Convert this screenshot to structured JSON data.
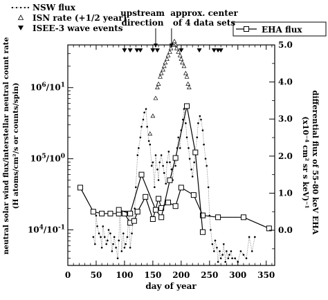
{
  "chart_data": {
    "type": "scatter",
    "xlabel": "day of year",
    "ylabel_left": "neutral solar wind flux/interstellar neutral count rate",
    "ylabel_left_units": "(H atoms/cm²/s or counts/spin)",
    "ylabel_right": "differential flux of 55-80 keV EHA",
    "ylabel_right_units": "(x10⁻⁴ cm² sr s keV)⁻¹",
    "xlim": [
      0,
      365
    ],
    "ylim_left_log_decades": [
      3.5,
      6.6
    ],
    "ylim_right": [
      -0.95,
      5.0
    ],
    "x_ticks": [
      "0",
      "50",
      "100",
      "150",
      "200",
      "250",
      "300",
      "350"
    ],
    "x_tick_values": [
      0,
      50,
      100,
      150,
      200,
      250,
      300,
      350
    ],
    "left_ticks": [
      {
        "label": "10^6/10^1",
        "base": "10",
        "exp": "6",
        "sep": "/",
        "base2": "10",
        "exp2": "1",
        "value": 6
      },
      {
        "label": "10^5/10^0",
        "base": "10",
        "exp": "5",
        "sep": "/",
        "base2": "10",
        "exp2": "0",
        "value": 5
      },
      {
        "label": "10^4/10^-1",
        "base": "10",
        "exp": "4",
        "sep": "/",
        "base2": "10",
        "exp2": "-1",
        "value": 4
      }
    ],
    "right_ticks": [
      "0.0",
      "1.0",
      "2.0",
      "3.0",
      "4.0",
      "5.0"
    ],
    "right_tick_values": [
      0,
      1,
      2,
      3,
      4,
      5
    ],
    "legend_left": [
      {
        "symbol": "dotted-dots",
        "label": "NSW flux"
      },
      {
        "symbol": "open-triangle",
        "label": "ISN rate (+1/2 year)"
      },
      {
        "symbol": "filled-triangle",
        "label": "ISEE-3 wave events"
      }
    ],
    "legend_right": {
      "symbol": "open-square-line",
      "label": "EHA flux"
    },
    "annotations": [
      {
        "line1": "upstream",
        "line2": "direction",
        "day": 155
      },
      {
        "line1": "approx. center",
        "line2": "of 4 data sets",
        "day": 183
      }
    ],
    "series": [
      {
        "name": "EHA flux",
        "axis": "right",
        "x": [
          22,
          45,
          60,
          75,
          90,
          100,
          110,
          117,
          123,
          137,
          150,
          160,
          165,
          177,
          190,
          200,
          222,
          238,
          265,
          310,
          355
        ],
        "y": [
          1.15,
          0.5,
          0.45,
          0.45,
          0.45,
          0.45,
          0.2,
          0.25,
          0.5,
          0.9,
          0.3,
          0.85,
          0.6,
          0.75,
          0.65,
          1.15,
          0.95,
          0.4,
          0.35,
          0.35,
          0.05
        ]
      },
      {
        "name": "EHA flux (second trace)",
        "axis": "right",
        "x": [
          90,
          110,
          130,
          155,
          165,
          180,
          190,
          210,
          225,
          238
        ],
        "y": [
          0.55,
          0.45,
          1.5,
          0.55,
          0.35,
          1.35,
          1.95,
          3.35,
          2.1,
          -0.05
        ]
      }
    ],
    "nsw_flux_points": {
      "axis": "left_log10",
      "x": [
        45,
        48,
        50,
        52,
        55,
        58,
        60,
        62,
        65,
        68,
        70,
        72,
        75,
        78,
        80,
        82,
        85,
        88,
        90,
        92,
        95,
        98,
        100,
        102,
        105,
        108,
        110,
        113,
        115,
        118,
        120,
        123,
        125,
        128,
        130,
        133,
        135,
        138,
        140,
        143,
        145,
        148,
        150,
        153,
        155,
        158,
        160,
        162,
        165,
        168,
        170,
        173,
        175,
        178,
        180,
        183,
        185,
        188,
        190,
        193,
        195,
        198,
        200,
        203,
        205,
        208,
        210,
        213,
        215,
        218,
        220,
        223,
        225,
        228,
        230,
        233,
        235,
        238,
        240,
        243,
        245,
        248,
        250,
        252,
        255,
        258,
        260,
        263,
        265,
        268,
        270,
        273,
        275,
        278,
        280,
        283,
        285,
        288,
        290,
        295,
        300,
        305,
        310,
        315,
        320,
        325,
        330
      ],
      "y": [
        3.9,
        3.8,
        4.2,
        4.05,
        3.95,
        3.9,
        3.75,
        4.05,
        3.9,
        3.8,
        3.85,
        4.0,
        3.95,
        3.7,
        3.8,
        3.9,
        3.75,
        3.6,
        3.85,
        4.3,
        3.7,
        3.95,
        3.75,
        3.8,
        3.9,
        4.25,
        3.75,
        3.95,
        4.1,
        4.3,
        4.6,
        5.05,
        5.15,
        5.3,
        5.45,
        5.55,
        5.65,
        5.7,
        5.45,
        5.25,
        5.2,
        4.9,
        4.95,
        4.6,
        5.05,
        4.85,
        4.7,
        4.95,
        5.05,
        4.9,
        4.8,
        4.65,
        4.95,
        5.1,
        4.95,
        4.85,
        4.7,
        5.0,
        4.9,
        5.15,
        5.3,
        5.15,
        5.4,
        5.55,
        5.7,
        5.5,
        5.3,
        5.15,
        5.0,
        4.85,
        4.75,
        4.95,
        5.1,
        5.3,
        5.5,
        5.6,
        5.55,
        5.4,
        5.2,
        5.0,
        4.9,
        4.6,
        4.2,
        4.0,
        3.8,
        3.7,
        3.85,
        3.75,
        3.55,
        3.7,
        3.6,
        3.65,
        3.8,
        3.55,
        3.7,
        3.6,
        3.65,
        3.7,
        3.6,
        3.6,
        3.55,
        3.7,
        3.65,
        3.6,
        3.9,
        3.7,
        3.9
      ]
    },
    "isn_rate_points": {
      "axis": "left_log10",
      "x": [
        145,
        150,
        155,
        158,
        160,
        163,
        165,
        168,
        170,
        172,
        175,
        177,
        180,
        182,
        185,
        188,
        190,
        192,
        195,
        198,
        200,
        202,
        205,
        208,
        210,
        212,
        214
      ],
      "y": [
        5.35,
        5.6,
        5.85,
        6.0,
        6.05,
        6.15,
        6.2,
        6.25,
        6.3,
        6.35,
        6.4,
        6.45,
        6.5,
        6.55,
        6.6,
        6.65,
        6.6,
        6.55,
        6.5,
        6.45,
        6.4,
        6.35,
        6.3,
        6.2,
        6.15,
        6.05,
        6.0
      ]
    },
    "isee3_wave_events_days": [
      100,
      110,
      122,
      128,
      150,
      158,
      200,
      232,
      258,
      265,
      270
    ]
  }
}
